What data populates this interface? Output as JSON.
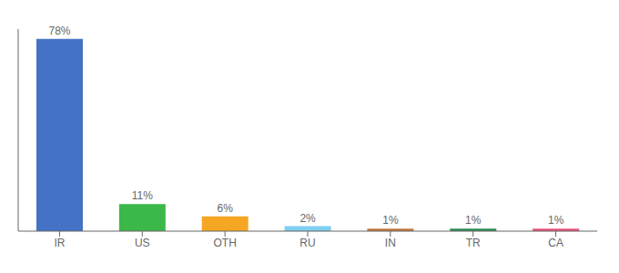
{
  "chart_data": {
    "type": "bar",
    "categories": [
      "IR",
      "US",
      "OTH",
      "RU",
      "IN",
      "TR",
      "CA"
    ],
    "values": [
      78,
      11,
      6,
      2,
      1,
      1,
      1
    ],
    "value_labels": [
      "78%",
      "11%",
      "6%",
      "2%",
      "1%",
      "1%",
      "1%"
    ],
    "data_labels": true,
    "colors": [
      "#4472c4",
      "#3cb84a",
      "#f5a623",
      "#7ecff0",
      "#c07840",
      "#2e8b57",
      "#e8537a"
    ],
    "ylim": [
      0,
      82
    ],
    "tick_labels": "x",
    "grid": false
  }
}
